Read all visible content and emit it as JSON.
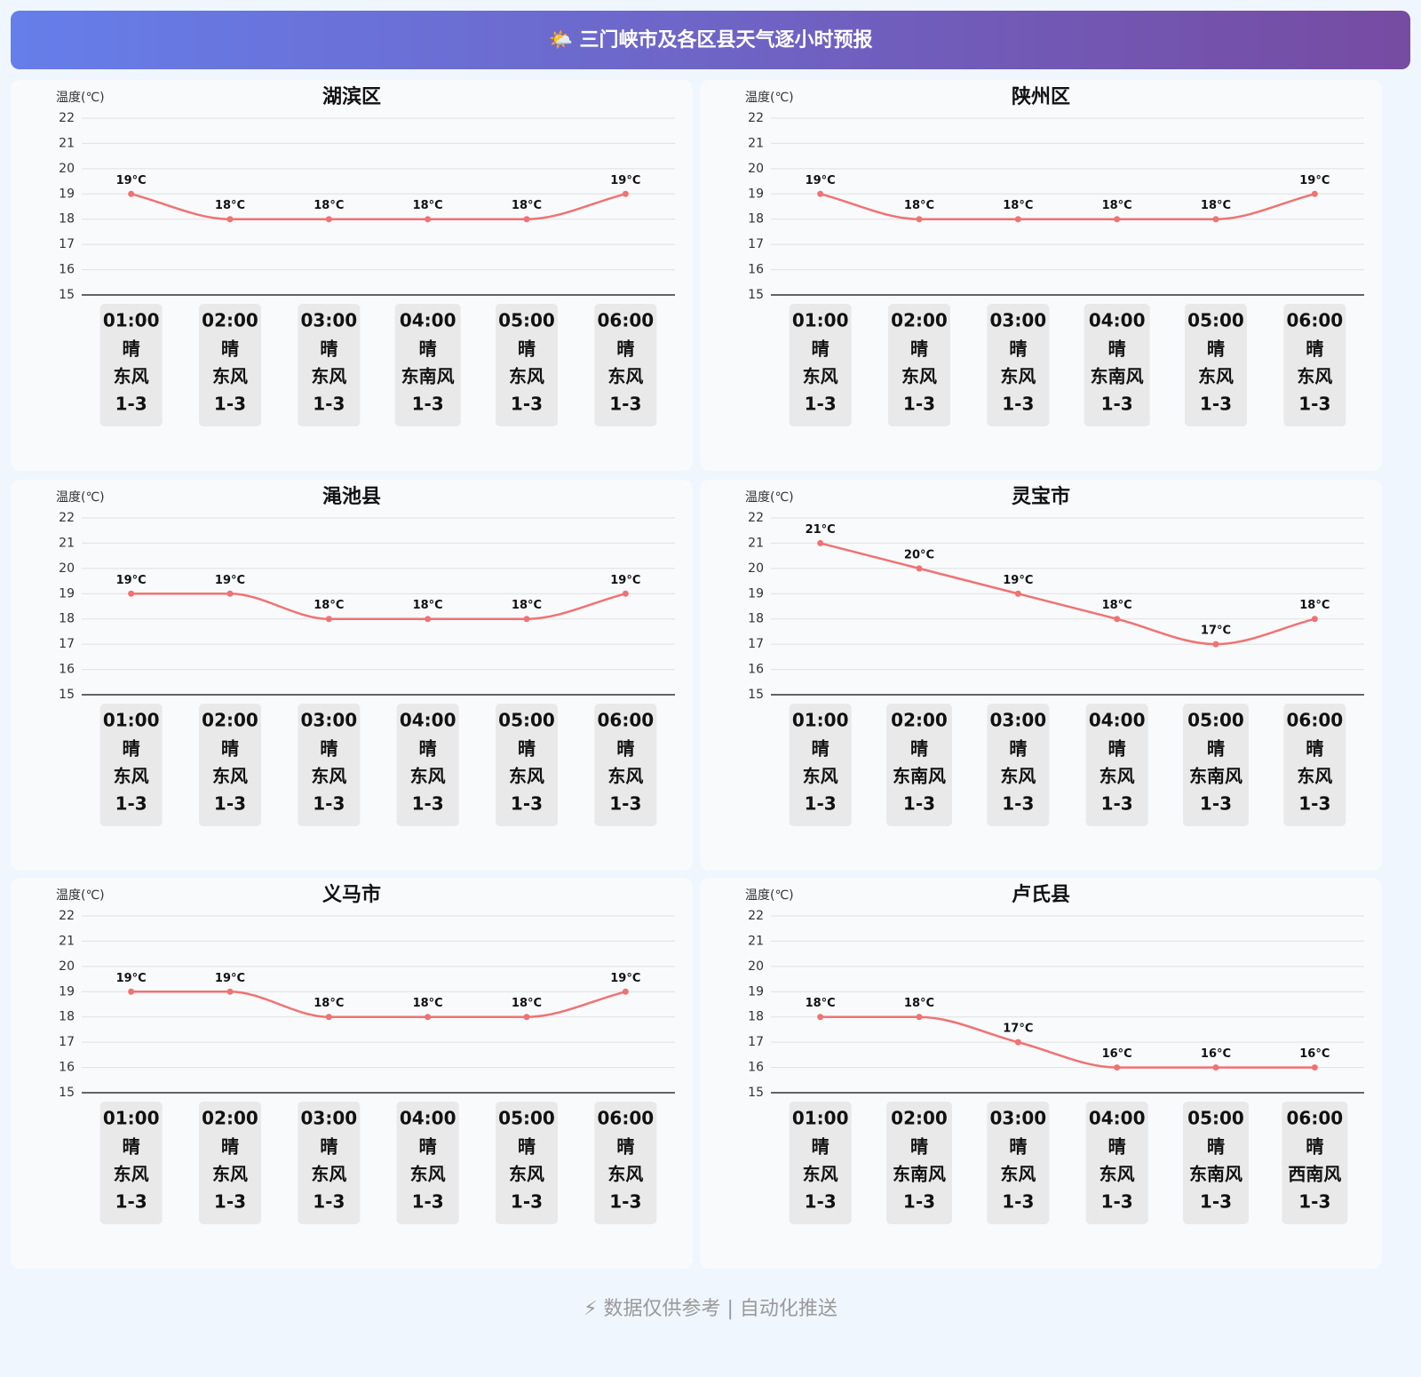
{
  "title": "🌤️ 三门峡市及各区县天气逐小时预报",
  "footer": "⚡ 数据仅供参考 | 自动化推送",
  "chart_data": [
    {
      "type": "line",
      "title": "湖滨区",
      "y_label": "温度(℃)",
      "color": "#f07272",
      "grid": true,
      "categories": [
        "01:00",
        "02:00",
        "03:00",
        "04:00",
        "05:00",
        "06:00"
      ],
      "values": [
        19,
        18,
        18,
        18,
        18,
        19
      ],
      "value_labels": [
        "19°C",
        "18°C",
        "18°C",
        "18°C",
        "18°C",
        "19°C"
      ],
      "weather": [
        "晴",
        "晴",
        "晴",
        "晴",
        "晴",
        "晴"
      ],
      "wind": [
        "东风",
        "东风",
        "东风",
        "东南风",
        "东风",
        "东风"
      ],
      "wind_level": [
        "1-3",
        "1-3",
        "1-3",
        "1-3",
        "1-3",
        "1-3"
      ],
      "ylim": [
        15,
        22
      ],
      "yticks": [
        15,
        16,
        17,
        18,
        19,
        20,
        21,
        22
      ]
    },
    {
      "type": "line",
      "title": "陕州区",
      "y_label": "温度(℃)",
      "color": "#f07272",
      "grid": true,
      "categories": [
        "01:00",
        "02:00",
        "03:00",
        "04:00",
        "05:00",
        "06:00"
      ],
      "values": [
        19,
        18,
        18,
        18,
        18,
        19
      ],
      "value_labels": [
        "19°C",
        "18°C",
        "18°C",
        "18°C",
        "18°C",
        "19°C"
      ],
      "weather": [
        "晴",
        "晴",
        "晴",
        "晴",
        "晴",
        "晴"
      ],
      "wind": [
        "东风",
        "东风",
        "东风",
        "东南风",
        "东风",
        "东风"
      ],
      "wind_level": [
        "1-3",
        "1-3",
        "1-3",
        "1-3",
        "1-3",
        "1-3"
      ],
      "ylim": [
        15,
        22
      ],
      "yticks": [
        15,
        16,
        17,
        18,
        19,
        20,
        21,
        22
      ]
    },
    {
      "type": "line",
      "title": "渑池县",
      "y_label": "温度(℃)",
      "color": "#f07272",
      "grid": true,
      "categories": [
        "01:00",
        "02:00",
        "03:00",
        "04:00",
        "05:00",
        "06:00"
      ],
      "values": [
        19,
        19,
        18,
        18,
        18,
        19
      ],
      "value_labels": [
        "19°C",
        "19°C",
        "18°C",
        "18°C",
        "18°C",
        "19°C"
      ],
      "weather": [
        "晴",
        "晴",
        "晴",
        "晴",
        "晴",
        "晴"
      ],
      "wind": [
        "东风",
        "东风",
        "东风",
        "东风",
        "东风",
        "东风"
      ],
      "wind_level": [
        "1-3",
        "1-3",
        "1-3",
        "1-3",
        "1-3",
        "1-3"
      ],
      "ylim": [
        15,
        22
      ],
      "yticks": [
        15,
        16,
        17,
        18,
        19,
        20,
        21,
        22
      ]
    },
    {
      "type": "line",
      "title": "灵宝市",
      "y_label": "温度(℃)",
      "color": "#f07272",
      "grid": true,
      "categories": [
        "01:00",
        "02:00",
        "03:00",
        "04:00",
        "05:00",
        "06:00"
      ],
      "values": [
        21,
        20,
        19,
        18,
        17,
        18
      ],
      "value_labels": [
        "21°C",
        "20°C",
        "19°C",
        "18°C",
        "17°C",
        "18°C"
      ],
      "weather": [
        "晴",
        "晴",
        "晴",
        "晴",
        "晴",
        "晴"
      ],
      "wind": [
        "东风",
        "东南风",
        "东风",
        "东风",
        "东南风",
        "东风"
      ],
      "wind_level": [
        "1-3",
        "1-3",
        "1-3",
        "1-3",
        "1-3",
        "1-3"
      ],
      "ylim": [
        15,
        22
      ],
      "yticks": [
        15,
        16,
        17,
        18,
        19,
        20,
        21,
        22
      ]
    },
    {
      "type": "line",
      "title": "义马市",
      "y_label": "温度(℃)",
      "color": "#f07272",
      "grid": true,
      "categories": [
        "01:00",
        "02:00",
        "03:00",
        "04:00",
        "05:00",
        "06:00"
      ],
      "values": [
        19,
        19,
        18,
        18,
        18,
        19
      ],
      "value_labels": [
        "19°C",
        "19°C",
        "18°C",
        "18°C",
        "18°C",
        "19°C"
      ],
      "weather": [
        "晴",
        "晴",
        "晴",
        "晴",
        "晴",
        "晴"
      ],
      "wind": [
        "东风",
        "东风",
        "东风",
        "东风",
        "东风",
        "东风"
      ],
      "wind_level": [
        "1-3",
        "1-3",
        "1-3",
        "1-3",
        "1-3",
        "1-3"
      ],
      "ylim": [
        15,
        22
      ],
      "yticks": [
        15,
        16,
        17,
        18,
        19,
        20,
        21,
        22
      ]
    },
    {
      "type": "line",
      "title": "卢氏县",
      "y_label": "温度(℃)",
      "color": "#f07272",
      "grid": true,
      "categories": [
        "01:00",
        "02:00",
        "03:00",
        "04:00",
        "05:00",
        "06:00"
      ],
      "values": [
        18,
        18,
        17,
        16,
        16,
        16
      ],
      "value_labels": [
        "18°C",
        "18°C",
        "17°C",
        "16°C",
        "16°C",
        "16°C"
      ],
      "weather": [
        "晴",
        "晴",
        "晴",
        "晴",
        "晴",
        "晴"
      ],
      "wind": [
        "东风",
        "东南风",
        "东风",
        "东风",
        "东南风",
        "西南风"
      ],
      "wind_level": [
        "1-3",
        "1-3",
        "1-3",
        "1-3",
        "1-3",
        "1-3"
      ],
      "ylim": [
        15,
        22
      ],
      "yticks": [
        15,
        16,
        17,
        18,
        19,
        20,
        21,
        22
      ]
    }
  ]
}
